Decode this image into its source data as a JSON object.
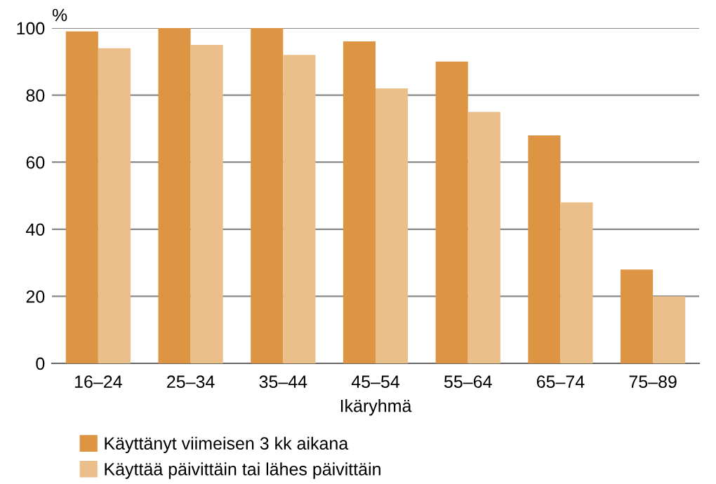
{
  "chart_data": {
    "type": "bar",
    "ylabel": "%",
    "xlabel": "Ikäryhmä",
    "categories": [
      "16–24",
      "25–34",
      "35–44",
      "45–54",
      "55–64",
      "65–74",
      "75–89"
    ],
    "series": [
      {
        "name": "Käyttänyt viimeisen 3 kk aikana",
        "color": "#dd9443",
        "values": [
          99,
          100,
          100,
          96,
          90,
          68,
          28
        ]
      },
      {
        "name": "Käyttää päivittäin tai lähes päivittäin",
        "color": "#eabf8a",
        "values": [
          94,
          95,
          92,
          82,
          75,
          48,
          20
        ]
      }
    ],
    "ylim": [
      0,
      100
    ],
    "yticks": [
      0,
      20,
      40,
      60,
      80,
      100
    ],
    "grid": "y",
    "legend": "bottom left"
  }
}
